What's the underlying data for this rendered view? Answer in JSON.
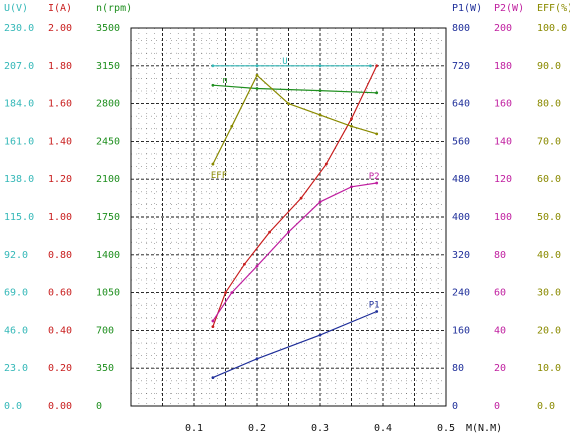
{
  "colors": {
    "voltage": "#35b8b8",
    "current": "#c81e1e",
    "speed": "#1f8f1f",
    "p1": "#1f2f9a",
    "p2": "#c020a0",
    "eff": "#8a8a00",
    "grid": "#111111",
    "bg": "#ffffff"
  },
  "axes": {
    "left": [
      {
        "key": "u",
        "title": "U(V)",
        "color_key": "voltage",
        "ticks": [
          "0.0",
          "23.0",
          "46.0",
          "69.0",
          "92.0",
          "115.0",
          "138.0",
          "161.0",
          "184.0",
          "207.0",
          "230.0"
        ]
      },
      {
        "key": "i",
        "title": "I(A)",
        "color_key": "current",
        "ticks": [
          "0.00",
          "0.20",
          "0.40",
          "0.60",
          "0.80",
          "1.00",
          "1.20",
          "1.40",
          "1.60",
          "1.80",
          "2.00"
        ]
      },
      {
        "key": "n",
        "title": "n(rpm)",
        "color_key": "speed",
        "ticks": [
          "0",
          "350",
          "700",
          "1050",
          "1400",
          "1750",
          "2100",
          "2450",
          "2800",
          "3150",
          "3500"
        ]
      }
    ],
    "right": [
      {
        "key": "p1",
        "title": "P1(W)",
        "color_key": "p1",
        "ticks": [
          "0",
          "80",
          "160",
          "240",
          "320",
          "400",
          "480",
          "560",
          "640",
          "720",
          "800"
        ]
      },
      {
        "key": "p2",
        "title": "P2(W)",
        "color_key": "p2",
        "ticks": [
          "0",
          "20",
          "40",
          "60",
          "80",
          "100",
          "120",
          "140",
          "160",
          "180",
          "200"
        ]
      },
      {
        "key": "eff",
        "title": "EFF(%)",
        "color_key": "eff",
        "ticks": [
          "0.0",
          "10.0",
          "20.0",
          "30.0",
          "40.0",
          "50.0",
          "60.0",
          "70.0",
          "80.0",
          "90.0",
          "100.0"
        ]
      }
    ],
    "x": {
      "title": "M(N.M)",
      "ticks": [
        "0.1",
        "0.2",
        "0.3",
        "0.4",
        "0.5"
      ],
      "xlim": [
        0,
        0.5
      ]
    }
  },
  "chart_data": {
    "type": "line",
    "xlabel": "M(N.M)",
    "xlim": [
      0,
      0.5
    ],
    "grid": true,
    "series": [
      {
        "name": "U",
        "axis": "u",
        "color_key": "voltage",
        "label": "U",
        "x": [
          0.13,
          0.2,
          0.3,
          0.38
        ],
        "y": [
          207.0,
          207.0,
          207.0,
          207.0
        ]
      },
      {
        "name": "n",
        "axis": "n",
        "color_key": "speed",
        "label": "n",
        "x": [
          0.13,
          0.2,
          0.3,
          0.39
        ],
        "y": [
          2970,
          2940,
          2920,
          2900
        ]
      },
      {
        "name": "I",
        "axis": "i",
        "color_key": "current",
        "label": "",
        "x": [
          0.13,
          0.15,
          0.18,
          0.22,
          0.27,
          0.31,
          0.35,
          0.39
        ],
        "y": [
          0.42,
          0.6,
          0.75,
          0.92,
          1.1,
          1.28,
          1.52,
          1.8
        ]
      },
      {
        "name": "P2",
        "axis": "p2",
        "color_key": "p2",
        "label": "P2",
        "x": [
          0.13,
          0.16,
          0.2,
          0.25,
          0.3,
          0.35,
          0.39
        ],
        "y": [
          45,
          60,
          74,
          92,
          108,
          116,
          118
        ]
      },
      {
        "name": "P1",
        "axis": "p1",
        "color_key": "p1",
        "label": "P1",
        "x": [
          0.13,
          0.2,
          0.3,
          0.39
        ],
        "y": [
          60,
          100,
          150,
          200
        ]
      },
      {
        "name": "EFF",
        "axis": "eff",
        "color_key": "eff",
        "label": "EFF",
        "x": [
          0.13,
          0.16,
          0.2,
          0.25,
          0.3,
          0.35,
          0.39
        ],
        "y": [
          64.0,
          74.0,
          87.5,
          80.0,
          77.0,
          74.0,
          72.0
        ]
      }
    ]
  }
}
